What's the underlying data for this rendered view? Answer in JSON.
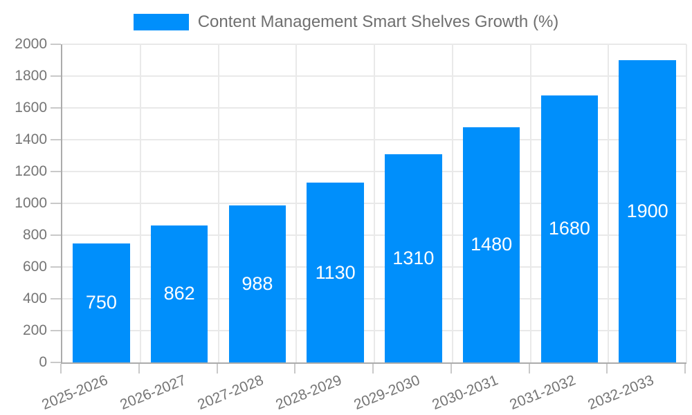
{
  "legend": {
    "swatch_icon": "series-color-swatch"
  },
  "chart_data": {
    "type": "bar",
    "title": "Content Management Smart Shelves Growth (%)",
    "series_name": "Content Management Smart Shelves Growth (%)",
    "categories": [
      "2025-2026",
      "2026-2027",
      "2027-2028",
      "2028-2029",
      "2029-2030",
      "2030-2031",
      "2031-2032",
      "2032-2033"
    ],
    "values": [
      750,
      862,
      988,
      1130,
      1310,
      1480,
      1680,
      1900
    ],
    "xlabel": "",
    "ylabel": "",
    "ylim": [
      0,
      2000
    ],
    "ytick_step": 200,
    "ytick_labels": [
      "0",
      "200",
      "400",
      "600",
      "800",
      "1000",
      "1200",
      "1400",
      "1600",
      "1800",
      "2000"
    ],
    "grid": true,
    "legend_position": "top",
    "bar_color": "#008FFB",
    "value_label_color": "#FFFFFF",
    "axis_text_color": "#757575",
    "grid_color": "#e9e9e9",
    "axis_line_color": "#ababab"
  }
}
